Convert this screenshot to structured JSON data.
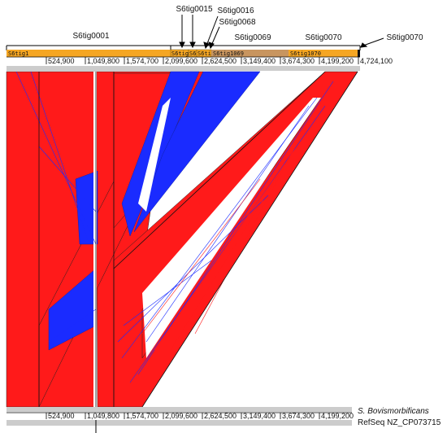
{
  "top_genome": {
    "contig_labels": [
      {
        "key": "c0001",
        "text": "S6tig0001"
      },
      {
        "key": "c0015",
        "text": "S6tig0015"
      },
      {
        "key": "c0016",
        "text": "S6tig0016"
      },
      {
        "key": "c0068",
        "text": "S6tig0068"
      },
      {
        "key": "c0069",
        "text": "S6tig0069"
      },
      {
        "key": "c0070",
        "text": "S6tig0070"
      },
      {
        "key": "c0070b",
        "text": "S6tig0070"
      }
    ],
    "bar_labels": [
      "S6tig1",
      "S6tig",
      "S6",
      "S6ti",
      "S6tig1069",
      "S6tig1070"
    ],
    "ticks": [
      "524,900",
      "1,049,800",
      "1,574,700",
      "2,099,600",
      "2,624,500",
      "3,149,400",
      "3,674,300",
      "4,199,200",
      "4,724,100"
    ],
    "colors": {
      "contig": "#f5a623",
      "contig_alt": "#c8955f",
      "forward": "#ff1a1a",
      "reverse": "#1a2bff",
      "track": "#cccccc"
    }
  },
  "bottom_genome": {
    "name_italic": "S. Bovismorbificans",
    "name_refseq": "RefSeq NZ_CP073715",
    "ticks": [
      "524,900",
      "1,049,800",
      "1,574,700",
      "2,099,600",
      "2,624,500",
      "3,149,400",
      "3,674,300",
      "4,199,200"
    ]
  }
}
